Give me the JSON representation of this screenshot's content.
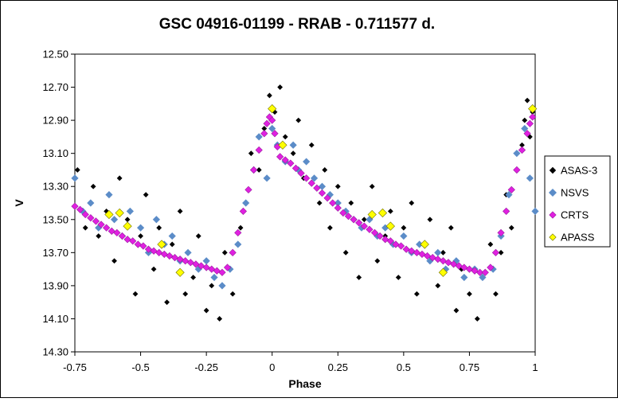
{
  "chart_data": {
    "type": "scatter",
    "title": "GSC 04916-01199 - RRAB - 0.711577 d.",
    "xlabel": "Phase",
    "ylabel": "V",
    "xlim": [
      -0.75,
      1
    ],
    "ylim": [
      12.5,
      14.3
    ],
    "y_reversed": true,
    "grid": false,
    "legend_position": "right",
    "x_ticks": [
      "-0.75",
      "-0.5",
      "-0.25",
      "0",
      "0.25",
      "0.5",
      "0.75",
      "1"
    ],
    "y_ticks": [
      "12.50",
      "12.70",
      "12.90",
      "13.10",
      "13.30",
      "13.50",
      "13.70",
      "13.90",
      "14.10",
      "14.30"
    ],
    "light_curve_model": {
      "period_days": 0.711577,
      "max_phase": 0.0,
      "min_phase": -0.19,
      "max_mag": 12.88,
      "min_mag": 13.82,
      "mag_at_phase_0_05": 13.14,
      "mag_at_phase_minus_0_75": 13.44
    },
    "series": [
      {
        "name": "ASAS-3",
        "marker": "diamond",
        "color": "#000000",
        "points": [
          [
            -0.74,
            13.2
          ],
          [
            -0.71,
            13.55
          ],
          [
            -0.68,
            13.3
          ],
          [
            -0.66,
            13.6
          ],
          [
            -0.63,
            13.45
          ],
          [
            -0.6,
            13.75
          ],
          [
            -0.58,
            13.25
          ],
          [
            -0.55,
            13.5
          ],
          [
            -0.52,
            13.95
          ],
          [
            -0.5,
            13.6
          ],
          [
            -0.48,
            13.35
          ],
          [
            -0.45,
            13.8
          ],
          [
            -0.43,
            13.55
          ],
          [
            -0.4,
            14.0
          ],
          [
            -0.38,
            13.65
          ],
          [
            -0.35,
            13.45
          ],
          [
            -0.33,
            13.95
          ],
          [
            -0.3,
            13.85
          ],
          [
            -0.28,
            13.6
          ],
          [
            -0.25,
            14.05
          ],
          [
            -0.23,
            13.9
          ],
          [
            -0.2,
            14.1
          ],
          [
            -0.18,
            13.7
          ],
          [
            -0.15,
            13.95
          ],
          [
            -0.12,
            13.55
          ],
          [
            -0.1,
            13.4
          ],
          [
            -0.08,
            13.1
          ],
          [
            -0.05,
            13.2
          ],
          [
            -0.03,
            12.95
          ],
          [
            -0.01,
            12.75
          ],
          [
            0.01,
            12.85
          ],
          [
            0.03,
            12.7
          ],
          [
            0.05,
            13.0
          ],
          [
            0.08,
            13.1
          ],
          [
            0.1,
            12.9
          ],
          [
            0.12,
            13.25
          ],
          [
            0.15,
            13.05
          ],
          [
            0.18,
            13.4
          ],
          [
            0.2,
            13.2
          ],
          [
            0.22,
            13.55
          ],
          [
            0.25,
            13.3
          ],
          [
            0.28,
            13.7
          ],
          [
            0.3,
            13.4
          ],
          [
            0.33,
            13.85
          ],
          [
            0.35,
            13.5
          ],
          [
            0.38,
            13.3
          ],
          [
            0.4,
            13.75
          ],
          [
            0.43,
            13.6
          ],
          [
            0.45,
            13.45
          ],
          [
            0.48,
            13.85
          ],
          [
            0.5,
            13.55
          ],
          [
            0.53,
            13.4
          ],
          [
            0.55,
            13.95
          ],
          [
            0.58,
            13.65
          ],
          [
            0.6,
            13.5
          ],
          [
            0.63,
            13.9
          ],
          [
            0.65,
            13.7
          ],
          [
            0.68,
            13.55
          ],
          [
            0.7,
            14.05
          ],
          [
            0.72,
            13.8
          ],
          [
            0.75,
            13.95
          ],
          [
            0.78,
            14.1
          ],
          [
            0.8,
            13.85
          ],
          [
            0.83,
            13.65
          ],
          [
            0.85,
            13.95
          ],
          [
            0.87,
            13.7
          ],
          [
            0.89,
            13.35
          ],
          [
            0.91,
            13.55
          ],
          [
            0.93,
            13.2
          ],
          [
            0.95,
            13.05
          ],
          [
            0.96,
            12.9
          ],
          [
            0.97,
            12.78
          ],
          [
            0.98,
            13.0
          ],
          [
            0.99,
            12.85
          ]
        ]
      },
      {
        "name": "NSVS",
        "marker": "diamond",
        "color": "#5b8cc8",
        "points": [
          [
            -0.75,
            13.25
          ],
          [
            -0.72,
            13.45
          ],
          [
            -0.69,
            13.4
          ],
          [
            -0.66,
            13.55
          ],
          [
            -0.62,
            13.35
          ],
          [
            -0.6,
            13.5
          ],
          [
            -0.57,
            13.6
          ],
          [
            -0.54,
            13.45
          ],
          [
            -0.5,
            13.55
          ],
          [
            -0.47,
            13.7
          ],
          [
            -0.44,
            13.5
          ],
          [
            -0.41,
            13.65
          ],
          [
            -0.38,
            13.6
          ],
          [
            -0.35,
            13.75
          ],
          [
            -0.32,
            13.7
          ],
          [
            -0.28,
            13.8
          ],
          [
            -0.25,
            13.75
          ],
          [
            -0.22,
            13.85
          ],
          [
            -0.19,
            13.9
          ],
          [
            -0.16,
            13.8
          ],
          [
            -0.13,
            13.65
          ],
          [
            -0.1,
            13.4
          ],
          [
            -0.07,
            13.2
          ],
          [
            -0.05,
            13.0
          ],
          [
            -0.02,
            13.25
          ],
          [
            0.0,
            12.95
          ],
          [
            0.02,
            13.05
          ],
          [
            0.05,
            13.15
          ],
          [
            0.08,
            13.05
          ],
          [
            0.1,
            13.2
          ],
          [
            0.13,
            13.15
          ],
          [
            0.16,
            13.25
          ],
          [
            0.19,
            13.3
          ],
          [
            0.22,
            13.35
          ],
          [
            0.25,
            13.4
          ],
          [
            0.28,
            13.45
          ],
          [
            0.31,
            13.5
          ],
          [
            0.34,
            13.55
          ],
          [
            0.37,
            13.5
          ],
          [
            0.4,
            13.6
          ],
          [
            0.43,
            13.55
          ],
          [
            0.46,
            13.65
          ],
          [
            0.5,
            13.6
          ],
          [
            0.53,
            13.7
          ],
          [
            0.56,
            13.65
          ],
          [
            0.6,
            13.75
          ],
          [
            0.63,
            13.7
          ],
          [
            0.66,
            13.8
          ],
          [
            0.7,
            13.75
          ],
          [
            0.73,
            13.85
          ],
          [
            0.77,
            13.8
          ],
          [
            0.8,
            13.85
          ],
          [
            0.84,
            13.8
          ],
          [
            0.87,
            13.6
          ],
          [
            0.9,
            13.35
          ],
          [
            0.93,
            13.1
          ],
          [
            0.96,
            12.95
          ],
          [
            0.98,
            13.25
          ],
          [
            1.0,
            13.45
          ]
        ]
      },
      {
        "name": "CRTS",
        "marker": "diamond",
        "color": "#e020e0",
        "points": [
          [
            -0.75,
            13.42
          ],
          [
            -0.73,
            13.44
          ],
          [
            -0.71,
            13.47
          ],
          [
            -0.69,
            13.49
          ],
          [
            -0.67,
            13.51
          ],
          [
            -0.65,
            13.53
          ],
          [
            -0.63,
            13.55
          ],
          [
            -0.61,
            13.57
          ],
          [
            -0.59,
            13.58
          ],
          [
            -0.57,
            13.6
          ],
          [
            -0.55,
            13.62
          ],
          [
            -0.53,
            13.63
          ],
          [
            -0.51,
            13.65
          ],
          [
            -0.49,
            13.66
          ],
          [
            -0.47,
            13.68
          ],
          [
            -0.45,
            13.69
          ],
          [
            -0.43,
            13.7
          ],
          [
            -0.41,
            13.71
          ],
          [
            -0.39,
            13.72
          ],
          [
            -0.37,
            13.73
          ],
          [
            -0.35,
            13.74
          ],
          [
            -0.33,
            13.75
          ],
          [
            -0.31,
            13.76
          ],
          [
            -0.29,
            13.77
          ],
          [
            -0.27,
            13.78
          ],
          [
            -0.25,
            13.79
          ],
          [
            -0.23,
            13.8
          ],
          [
            -0.21,
            13.81
          ],
          [
            -0.19,
            13.82
          ],
          [
            -0.17,
            13.79
          ],
          [
            -0.15,
            13.7
          ],
          [
            -0.13,
            13.58
          ],
          [
            -0.11,
            13.45
          ],
          [
            -0.09,
            13.32
          ],
          [
            -0.07,
            13.2
          ],
          [
            -0.05,
            13.08
          ],
          [
            -0.03,
            12.98
          ],
          [
            -0.02,
            12.92
          ],
          [
            -0.01,
            12.88
          ],
          [
            0.0,
            12.9
          ],
          [
            0.01,
            12.98
          ],
          [
            0.02,
            13.06
          ],
          [
            0.03,
            13.12
          ],
          [
            0.05,
            13.14
          ],
          [
            0.07,
            13.16
          ],
          [
            0.09,
            13.19
          ],
          [
            0.11,
            13.22
          ],
          [
            0.13,
            13.25
          ],
          [
            0.15,
            13.28
          ],
          [
            0.17,
            13.31
          ],
          [
            0.19,
            13.34
          ],
          [
            0.21,
            13.37
          ],
          [
            0.23,
            13.4
          ],
          [
            0.25,
            13.43
          ],
          [
            0.27,
            13.46
          ],
          [
            0.29,
            13.48
          ],
          [
            0.31,
            13.5
          ],
          [
            0.33,
            13.52
          ],
          [
            0.35,
            13.54
          ],
          [
            0.37,
            13.56
          ],
          [
            0.39,
            13.58
          ],
          [
            0.41,
            13.6
          ],
          [
            0.43,
            13.62
          ],
          [
            0.45,
            13.63
          ],
          [
            0.47,
            13.65
          ],
          [
            0.49,
            13.66
          ],
          [
            0.51,
            13.68
          ],
          [
            0.53,
            13.69
          ],
          [
            0.55,
            13.7
          ],
          [
            0.57,
            13.71
          ],
          [
            0.59,
            13.72
          ],
          [
            0.61,
            13.73
          ],
          [
            0.63,
            13.74
          ],
          [
            0.65,
            13.75
          ],
          [
            0.67,
            13.76
          ],
          [
            0.69,
            13.77
          ],
          [
            0.71,
            13.78
          ],
          [
            0.73,
            13.79
          ],
          [
            0.75,
            13.8
          ],
          [
            0.77,
            13.81
          ],
          [
            0.79,
            13.82
          ],
          [
            0.81,
            13.82
          ],
          [
            0.83,
            13.79
          ],
          [
            0.85,
            13.7
          ],
          [
            0.87,
            13.58
          ],
          [
            0.89,
            13.45
          ],
          [
            0.91,
            13.32
          ],
          [
            0.93,
            13.2
          ],
          [
            0.95,
            13.08
          ],
          [
            0.97,
            12.98
          ],
          [
            0.98,
            12.92
          ],
          [
            0.99,
            12.88
          ]
        ]
      },
      {
        "name": "APASS",
        "marker": "diamond",
        "color": "#ffff00",
        "points": [
          [
            -0.62,
            13.47
          ],
          [
            -0.58,
            13.46
          ],
          [
            -0.55,
            13.54
          ],
          [
            -0.42,
            13.65
          ],
          [
            -0.35,
            13.82
          ],
          [
            0.0,
            12.83
          ],
          [
            0.04,
            13.05
          ],
          [
            0.38,
            13.47
          ],
          [
            0.42,
            13.46
          ],
          [
            0.45,
            13.54
          ],
          [
            0.58,
            13.65
          ],
          [
            0.65,
            13.82
          ],
          [
            0.99,
            12.83
          ]
        ]
      }
    ]
  }
}
